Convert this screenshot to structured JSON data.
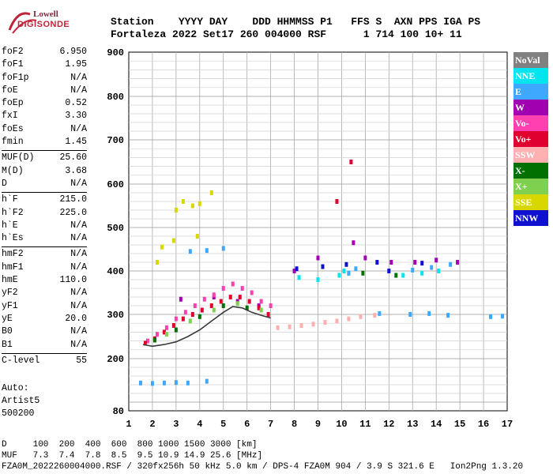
{
  "logo": {
    "line1": "Lowell",
    "line2": "DIGISONDE"
  },
  "header": {
    "line1": "Station    YYYY DAY    DDD HHMMSS P1   FFS S  AXN PPS IGA PS",
    "line2": "Fortaleza 2022 Set17 260 004000 RSF      1 714 100 10+ 11"
  },
  "params": [
    {
      "k": "foF2",
      "v": "6.950"
    },
    {
      "k": "foF1",
      "v": "1.95"
    },
    {
      "k": "foF1p",
      "v": "N/A"
    },
    {
      "k": "foE",
      "v": "N/A"
    },
    {
      "k": "foEp",
      "v": "0.52"
    },
    {
      "k": "fxI",
      "v": "3.30"
    },
    {
      "k": "foEs",
      "v": "N/A"
    },
    {
      "k": "fmin",
      "v": "1.45"
    },
    {
      "sep": true
    },
    {
      "k": "MUF(D)",
      "v": "25.60"
    },
    {
      "k": "M(D)",
      "v": "3.68"
    },
    {
      "k": "D",
      "v": "N/A"
    },
    {
      "sep": true
    },
    {
      "k": "h`F",
      "v": "215.0"
    },
    {
      "k": "h`F2",
      "v": "225.0"
    },
    {
      "k": "h`E",
      "v": "N/A"
    },
    {
      "k": "h`Es",
      "v": "N/A"
    },
    {
      "sep": true
    },
    {
      "k": "hmF2",
      "v": "N/A"
    },
    {
      "k": "hmF1",
      "v": "N/A"
    },
    {
      "k": "hmE",
      "v": "110.0"
    },
    {
      "k": "yF2",
      "v": "N/A"
    },
    {
      "k": "yF1",
      "v": "N/A"
    },
    {
      "k": "yE",
      "v": "20.0"
    },
    {
      "k": "B0",
      "v": "N/A"
    },
    {
      "k": "B1",
      "v": "N/A"
    },
    {
      "sep": true
    },
    {
      "k": "C-level",
      "v": "55"
    }
  ],
  "auto": {
    "line1": "Auto:",
    "line2": "Artist5",
    "line3": "500200"
  },
  "legend": [
    {
      "label": "NoVal",
      "bg": "#808080",
      "fg": "#ffffff"
    },
    {
      "label": "NNE",
      "bg": "#00e5ee",
      "fg": "#ffffff"
    },
    {
      "label": "E",
      "bg": "#3ea8ff",
      "fg": "#ffffff"
    },
    {
      "label": "W",
      "bg": "#a000b0",
      "fg": "#ffffff"
    },
    {
      "label": "Vo-",
      "bg": "#ff40b0",
      "fg": "#ffffff"
    },
    {
      "label": "Vo+",
      "bg": "#e00030",
      "fg": "#ffffff"
    },
    {
      "label": "SSW",
      "bg": "#ffb0b0",
      "fg": "#ffffff"
    },
    {
      "label": "X-",
      "bg": "#007000",
      "fg": "#ffffff"
    },
    {
      "label": "X+",
      "bg": "#80d050",
      "fg": "#ffffff"
    },
    {
      "label": "SSE",
      "bg": "#d8d800",
      "fg": "#ffffff"
    },
    {
      "label": "NNW",
      "bg": "#1010d0",
      "fg": "#ffffff"
    }
  ],
  "footer": {
    "line1": "D     100  200  400  600  800 1000 1500 3000 [km]",
    "line2": "MUF   7.3  7.4  7.8  8.5  9.5 10.9 14.9 25.6 [MHz]",
    "line3": "FZA0M_2022260004000.RSF / 320fx256h 50 kHz 5.0 km / DPS-4 FZA0M 904 / 3.9 S 321.6 E   Ion2Png 1.3.20"
  },
  "chart_data": {
    "type": "scatter",
    "xlim": [
      1,
      17
    ],
    "ylim": [
      80,
      900
    ],
    "xticks": [
      "1",
      "2",
      "3",
      "4",
      "5",
      "6",
      "7",
      "8",
      "9",
      "10",
      "11",
      "12",
      "13",
      "14",
      "15",
      "16",
      "17"
    ],
    "yticks": [
      "80",
      "200",
      "300",
      "400",
      "500",
      "600",
      "700",
      "800",
      "900"
    ],
    "grid": true,
    "series": [
      {
        "name": "NNE",
        "color": "#00e5ee",
        "points": [
          [
            9.9,
            390
          ],
          [
            10.1,
            400
          ],
          [
            10.3,
            395
          ],
          [
            12.6,
            390
          ],
          [
            13.4,
            395
          ],
          [
            14.1,
            400
          ],
          [
            9.0,
            380
          ],
          [
            8.2,
            385
          ]
        ]
      },
      {
        "name": "E",
        "color": "#3ea8ff",
        "points": [
          [
            1.5,
            144
          ],
          [
            2.0,
            143
          ],
          [
            2.5,
            144
          ],
          [
            3.0,
            145
          ],
          [
            3.5,
            144
          ],
          [
            4.3,
            148
          ],
          [
            3.6,
            445
          ],
          [
            4.3,
            447
          ],
          [
            5.0,
            452
          ],
          [
            10.3,
            395
          ],
          [
            10.6,
            405
          ],
          [
            13.0,
            402
          ],
          [
            13.8,
            408
          ],
          [
            14.6,
            415
          ],
          [
            12.9,
            300
          ],
          [
            13.7,
            302
          ],
          [
            14.5,
            298
          ],
          [
            16.3,
            295
          ],
          [
            16.8,
            296
          ],
          [
            11.6,
            302
          ]
        ]
      },
      {
        "name": "W",
        "color": "#a000b0",
        "points": [
          [
            3.2,
            335
          ],
          [
            4.6,
            340
          ],
          [
            5.6,
            330
          ],
          [
            6.5,
            320
          ],
          [
            8.0,
            400
          ],
          [
            9.0,
            430
          ],
          [
            10.5,
            465
          ],
          [
            11.0,
            430
          ],
          [
            12.1,
            420
          ],
          [
            13.1,
            420
          ],
          [
            14.0,
            425
          ],
          [
            14.9,
            420
          ]
        ]
      },
      {
        "name": "Vo-",
        "color": "#ff40b0",
        "points": [
          [
            1.8,
            240
          ],
          [
            2.2,
            255
          ],
          [
            2.6,
            270
          ],
          [
            3.0,
            290
          ],
          [
            3.4,
            305
          ],
          [
            3.8,
            320
          ],
          [
            4.2,
            335
          ],
          [
            4.6,
            345
          ],
          [
            5.0,
            360
          ],
          [
            5.4,
            370
          ],
          [
            5.8,
            360
          ],
          [
            6.2,
            350
          ],
          [
            6.6,
            330
          ],
          [
            7.0,
            320
          ]
        ]
      },
      {
        "name": "Vo+",
        "color": "#e00030",
        "points": [
          [
            1.7,
            235
          ],
          [
            2.1,
            245
          ],
          [
            2.5,
            260
          ],
          [
            2.9,
            275
          ],
          [
            3.3,
            290
          ],
          [
            3.7,
            300
          ],
          [
            4.1,
            310
          ],
          [
            4.5,
            320
          ],
          [
            4.9,
            330
          ],
          [
            5.3,
            340
          ],
          [
            5.7,
            340
          ],
          [
            6.1,
            330
          ],
          [
            6.5,
            315
          ],
          [
            6.9,
            300
          ],
          [
            10.4,
            650
          ],
          [
            9.8,
            560
          ]
        ]
      },
      {
        "name": "SSW",
        "color": "#ffb0b0",
        "points": [
          [
            7.3,
            270
          ],
          [
            7.8,
            272
          ],
          [
            8.3,
            275
          ],
          [
            8.8,
            278
          ],
          [
            9.3,
            282
          ],
          [
            9.8,
            285
          ],
          [
            10.3,
            290
          ],
          [
            10.8,
            295
          ],
          [
            11.4,
            298
          ]
        ]
      },
      {
        "name": "X-",
        "color": "#007000",
        "points": [
          [
            2.1,
            242
          ],
          [
            3.0,
            265
          ],
          [
            4.0,
            295
          ],
          [
            5.0,
            320
          ],
          [
            6.0,
            315
          ],
          [
            10.9,
            395
          ],
          [
            12.3,
            390
          ]
        ]
      },
      {
        "name": "X+",
        "color": "#80d050",
        "points": [
          [
            2.6,
            255
          ],
          [
            3.6,
            285
          ],
          [
            4.6,
            310
          ],
          [
            5.6,
            325
          ],
          [
            6.6,
            310
          ]
        ]
      },
      {
        "name": "SSE",
        "color": "#d8d800",
        "points": [
          [
            3.0,
            540
          ],
          [
            3.3,
            560
          ],
          [
            3.7,
            550
          ],
          [
            4.0,
            555
          ],
          [
            4.5,
            580
          ],
          [
            2.9,
            470
          ],
          [
            2.4,
            455
          ],
          [
            2.2,
            420
          ],
          [
            3.9,
            480
          ]
        ]
      },
      {
        "name": "NNW",
        "color": "#1010d0",
        "points": [
          [
            10.2,
            415
          ],
          [
            11.5,
            420
          ],
          [
            13.4,
            418
          ],
          [
            8.1,
            405
          ],
          [
            9.2,
            410
          ],
          [
            12.0,
            400
          ]
        ]
      }
    ],
    "trace": {
      "color": "#3a3a3a",
      "points": [
        [
          1.6,
          232
        ],
        [
          2.0,
          228
        ],
        [
          2.5,
          232
        ],
        [
          3.0,
          238
        ],
        [
          3.5,
          250
        ],
        [
          4.0,
          265
        ],
        [
          4.5,
          285
        ],
        [
          5.0,
          305
        ],
        [
          5.4,
          318
        ],
        [
          5.8,
          315
        ],
        [
          6.2,
          305
        ],
        [
          6.6,
          298
        ],
        [
          7.0,
          292
        ]
      ]
    }
  }
}
